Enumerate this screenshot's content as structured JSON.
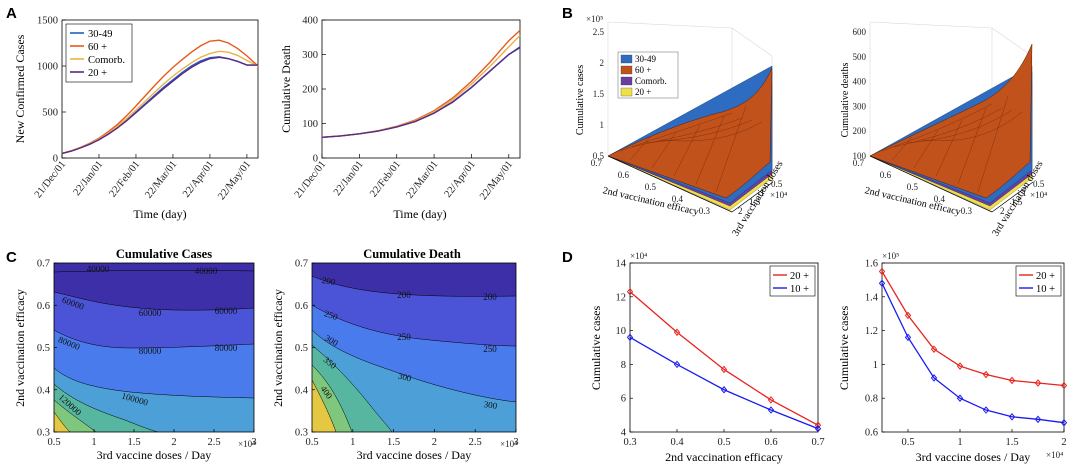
{
  "panels": {
    "a": "A",
    "b": "B",
    "c": "C",
    "d": "D"
  },
  "colors": {
    "s30_49": "#1f5fbf",
    "s60": "#e8581c",
    "comorb": "#e9b24a",
    "s20": "#5a2a86",
    "red": "#e8231f",
    "blue": "#1b1bf0",
    "surface_orange": "#c2521c",
    "contour_levels": [
      "#e4c844",
      "#7fc77c",
      "#56b6a0",
      "#4d9fd8",
      "#4a7bec",
      "#4b53d6",
      "#3d2fa8"
    ]
  },
  "chart_data": [
    {
      "id": "A1",
      "type": "line",
      "x_ticks": [
        "21/Dec/01",
        "22/Jan/01",
        "22/Feb/01",
        "22/Mar/01",
        "22/Apr/01",
        "22/May/01"
      ],
      "x": [
        0,
        0.25,
        0.5,
        0.75,
        1,
        1.25,
        1.5,
        1.75,
        2,
        2.25,
        2.5,
        2.75,
        3,
        3.25,
        3.5,
        3.75,
        4,
        4.25,
        4.5,
        4.75,
        5,
        5.3
      ],
      "xlabel": "Time (day)",
      "ylabel": "New Confirmed Cases",
      "ylim": [
        0,
        1500
      ],
      "y_ticks": [
        0,
        500,
        1000,
        1500
      ],
      "legend": [
        "30-49",
        "60 +",
        "Comorb.",
        "20 +"
      ],
      "series": [
        {
          "name": "30-49",
          "color_key": "s30_49",
          "values": [
            50,
            75,
            110,
            150,
            200,
            260,
            330,
            410,
            500,
            590,
            680,
            770,
            850,
            930,
            1000,
            1055,
            1090,
            1100,
            1080,
            1050,
            1010,
            1010
          ]
        },
        {
          "name": "60 +",
          "color_key": "s60",
          "values": [
            50,
            78,
            115,
            160,
            215,
            285,
            365,
            460,
            565,
            675,
            785,
            890,
            985,
            1070,
            1150,
            1220,
            1270,
            1280,
            1250,
            1190,
            1110,
            1000
          ]
        },
        {
          "name": "Comorb.",
          "color_key": "comorb",
          "values": [
            50,
            76,
            112,
            155,
            207,
            270,
            345,
            430,
            522,
            617,
            712,
            805,
            890,
            965,
            1035,
            1095,
            1135,
            1160,
            1150,
            1115,
            1060,
            1000
          ]
        },
        {
          "name": "20 +",
          "color_key": "s20",
          "values": [
            50,
            75,
            110,
            150,
            198,
            258,
            327,
            405,
            492,
            580,
            668,
            755,
            835,
            915,
            985,
            1040,
            1080,
            1095,
            1080,
            1050,
            1010,
            1010
          ]
        }
      ]
    },
    {
      "id": "A2",
      "type": "line",
      "x_ticks": [
        "21/Dec/01",
        "22/Jan/01",
        "22/Feb/01",
        "22/Mar/01",
        "22/Apr/01",
        "22/May/01"
      ],
      "x": [
        0,
        0.5,
        1,
        1.5,
        2,
        2.5,
        3,
        3.5,
        4,
        4.5,
        5,
        5.3
      ],
      "xlabel": "Time (day)",
      "ylabel": "Cumulative Death",
      "ylim": [
        0,
        400
      ],
      "y_ticks": [
        0,
        100,
        200,
        300,
        400
      ],
      "series": [
        {
          "name": "30-49",
          "color_key": "s30_49",
          "values": [
            60,
            64,
            70,
            78,
            90,
            106,
            130,
            163,
            205,
            253,
            300,
            320
          ]
        },
        {
          "name": "60 +",
          "color_key": "s60",
          "values": [
            60,
            64,
            70,
            79,
            92,
            110,
            137,
            174,
            222,
            278,
            340,
            370
          ]
        },
        {
          "name": "Comorb.",
          "color_key": "comorb",
          "values": [
            60,
            64,
            70,
            78,
            91,
            108,
            134,
            169,
            214,
            266,
            322,
            355
          ]
        },
        {
          "name": "20 +",
          "color_key": "s20",
          "values": [
            60,
            64,
            70,
            78,
            90,
            106,
            130,
            162,
            204,
            252,
            300,
            322
          ]
        }
      ]
    },
    {
      "id": "B1",
      "type": "surface",
      "zlabel": "Cumulative cases",
      "z_mult": "×10⁵",
      "z_ticks": [
        "0.5",
        "1",
        "1.5",
        "2",
        "2.5"
      ],
      "x_ticks": [
        "0.7",
        "0.6",
        "0.5",
        "0.4",
        "0.3"
      ],
      "xlabel": "2nd vaccination efficacy",
      "y_ticks": [
        "0.5",
        "1",
        "1.5",
        "2"
      ],
      "ylabel": "3rd vaccination doses",
      "y_mult": "×10⁴",
      "legend": [
        "30-49",
        "60 +",
        "Comorb.",
        "20 +"
      ]
    },
    {
      "id": "B2",
      "type": "surface",
      "zlabel": "Cumulative deaths",
      "z_ticks": [
        "100",
        "200",
        "300",
        "400",
        "500",
        "600"
      ],
      "x_ticks": [
        "0.7",
        "0.6",
        "0.5",
        "0.4",
        "0.3"
      ],
      "xlabel": "2nd vaccination efficacy",
      "y_ticks": [
        "0.5",
        "1",
        "1.5",
        "2"
      ],
      "ylabel": "3rd vaccination doses",
      "y_mult": "×10⁴"
    },
    {
      "id": "C1",
      "type": "heatmap",
      "title": "Cumulative Cases",
      "xlabel": "3rd vaccine doses / Day",
      "x_mult": "×10⁴",
      "x_ticks": [
        "0.5",
        "1",
        "1.5",
        "2",
        "2.5",
        "3"
      ],
      "ylabel": "2nd vaccination efficacy",
      "y_ticks": [
        "0.3",
        "0.4",
        "0.5",
        "0.6",
        "0.7"
      ],
      "contour_labels": [
        "40000",
        "40000",
        "60000",
        "60000",
        "60000",
        "80000",
        "80000",
        "80000",
        "100000",
        "120000"
      ]
    },
    {
      "id": "C2",
      "type": "heatmap",
      "title": "Cumulative Death",
      "xlabel": "3rd vaccine doses / Day",
      "x_mult": "×10⁴",
      "x_ticks": [
        "0.5",
        "1",
        "1.5",
        "2",
        "2.5",
        "3"
      ],
      "ylabel": "2nd vaccination efficacy",
      "y_ticks": [
        "0.3",
        "0.4",
        "0.5",
        "0.6",
        "0.7"
      ],
      "contour_labels": [
        "200",
        "200",
        "200",
        "250",
        "250",
        "250",
        "300",
        "300",
        "300",
        "350",
        "400"
      ]
    },
    {
      "id": "D1",
      "type": "line",
      "xlabel": "2nd vaccination efficacy",
      "ylabel": "Cumulative cases",
      "y_mult": "×10⁴",
      "xlim": [
        0.3,
        0.7
      ],
      "ylim": [
        4,
        14
      ],
      "x_ticks": [
        0.3,
        0.4,
        0.5,
        0.6,
        0.7
      ],
      "y_ticks": [
        4,
        6,
        8,
        10,
        12,
        14
      ],
      "legend": [
        "20 +",
        "10 +"
      ],
      "series": [
        {
          "name": "20 +",
          "color_key": "red",
          "x": [
            0.3,
            0.4,
            0.5,
            0.6,
            0.7
          ],
          "values": [
            12.3,
            9.9,
            7.7,
            5.9,
            4.4
          ]
        },
        {
          "name": "10 +",
          "color_key": "blue",
          "x": [
            0.3,
            0.4,
            0.5,
            0.6,
            0.7
          ],
          "values": [
            9.6,
            8.0,
            6.5,
            5.3,
            4.2
          ]
        }
      ]
    },
    {
      "id": "D2",
      "type": "line",
      "xlabel": "3rd vaccine doses / Day",
      "x_mult": "×10⁴",
      "ylabel": "Cumulative cases",
      "y_mult": "×10⁵",
      "xlim": [
        0.25,
        2
      ],
      "ylim": [
        0.6,
        1.6
      ],
      "x_ticks": [
        0.5,
        1,
        1.5,
        2
      ],
      "y_ticks": [
        0.6,
        0.8,
        1,
        1.2,
        1.4,
        1.6
      ],
      "legend": [
        "20 +",
        "10 +"
      ],
      "series": [
        {
          "name": "20 +",
          "color_key": "red",
          "x": [
            0.25,
            0.5,
            0.75,
            1,
            1.25,
            1.5,
            1.75,
            2
          ],
          "values": [
            1.55,
            1.29,
            1.09,
            0.99,
            0.94,
            0.905,
            0.89,
            0.875
          ]
        },
        {
          "name": "10 +",
          "color_key": "blue",
          "x": [
            0.25,
            0.5,
            0.75,
            1,
            1.25,
            1.5,
            1.75,
            2
          ],
          "values": [
            1.48,
            1.16,
            0.92,
            0.8,
            0.73,
            0.69,
            0.675,
            0.655
          ]
        }
      ]
    }
  ]
}
